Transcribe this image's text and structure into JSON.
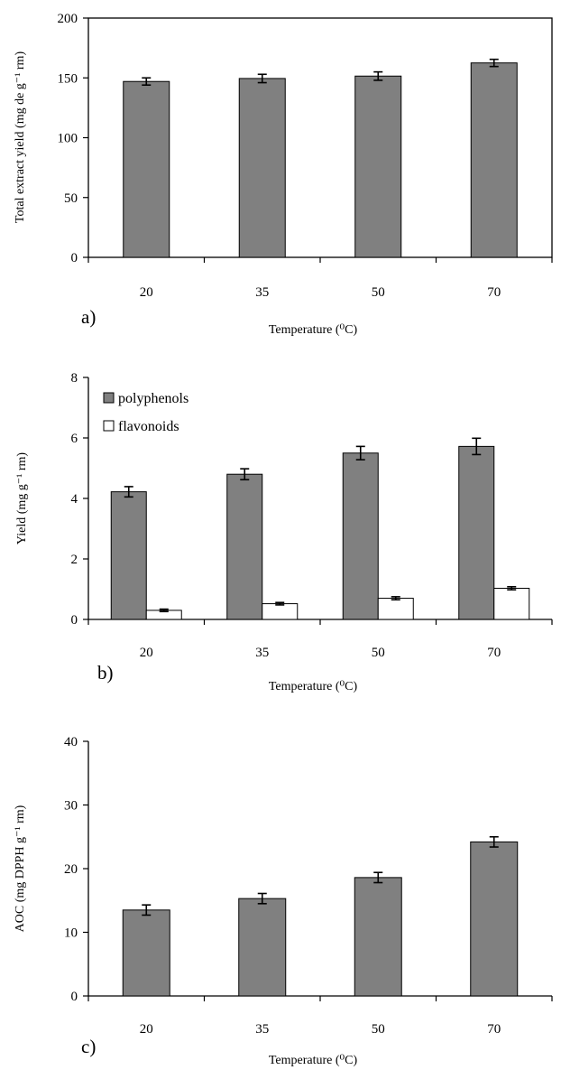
{
  "chart_data": [
    {
      "type": "bar",
      "panel_label": "a)",
      "categories": [
        "20",
        "35",
        "50",
        "70"
      ],
      "series": [
        {
          "values": [
            147,
            149.5,
            151.5,
            162.5
          ],
          "errors": [
            3,
            3.5,
            3.5,
            3
          ],
          "color": "#808080"
        }
      ],
      "ylim": [
        0,
        200
      ],
      "yticks": [
        0,
        50,
        100,
        150,
        200
      ],
      "xlabel": "Temperature (⁰C)",
      "ylabel": "Total extract yield (mg de  g⁻¹ rm)",
      "frame": "box",
      "grid": false
    },
    {
      "type": "bar",
      "panel_label": "b)",
      "categories": [
        "20",
        "35",
        "50",
        "70"
      ],
      "series": [
        {
          "name": "polyphenols",
          "values": [
            4.22,
            4.8,
            5.5,
            5.72
          ],
          "errors": [
            0.17,
            0.18,
            0.22,
            0.27
          ],
          "color": "#808080"
        },
        {
          "name": "flavonoids",
          "values": [
            0.3,
            0.52,
            0.7,
            1.03
          ],
          "errors": [
            0.04,
            0.04,
            0.05,
            0.05
          ],
          "color": "#ffffff"
        }
      ],
      "ylim": [
        0,
        8
      ],
      "yticks": [
        0,
        2,
        4,
        6,
        8
      ],
      "xlabel": "Temperature (⁰C)",
      "ylabel": "Yield (mg g⁻¹ rm)",
      "legend": "top-left",
      "frame": "axes",
      "grid": false
    },
    {
      "type": "bar",
      "panel_label": "c)",
      "categories": [
        "20",
        "35",
        "50",
        "70"
      ],
      "series": [
        {
          "values": [
            13.5,
            15.3,
            18.6,
            24.2
          ],
          "errors": [
            0.8,
            0.8,
            0.8,
            0.8
          ],
          "color": "#808080"
        }
      ],
      "ylim": [
        0,
        40
      ],
      "yticks": [
        0,
        10,
        20,
        30,
        40
      ],
      "xlabel": "Temperature (⁰C)",
      "ylabel": "AOC (mg DPPH g⁻¹ rm)",
      "frame": "axes",
      "grid": false
    }
  ]
}
